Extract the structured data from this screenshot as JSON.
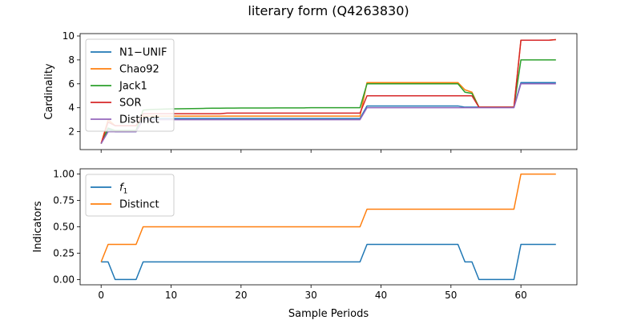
{
  "chart_data": {
    "type": "line",
    "title": "literary form (Q4263830)",
    "xlabel": "Sample Periods",
    "xlim": [
      -3,
      68
    ],
    "xticks": [
      0,
      10,
      20,
      30,
      40,
      50,
      60
    ],
    "x": [
      0,
      1,
      2,
      3,
      4,
      5,
      6,
      7,
      8,
      9,
      10,
      11,
      12,
      13,
      14,
      15,
      16,
      17,
      18,
      19,
      20,
      21,
      22,
      23,
      24,
      25,
      26,
      27,
      28,
      29,
      30,
      31,
      32,
      33,
      34,
      35,
      36,
      37,
      38,
      39,
      40,
      41,
      42,
      43,
      44,
      45,
      46,
      47,
      48,
      49,
      50,
      51,
      52,
      53,
      54,
      55,
      56,
      57,
      58,
      59,
      60,
      61,
      62,
      63,
      64,
      65
    ],
    "grid": false,
    "panels": [
      {
        "ylabel": "Cardinality",
        "ylim": [
          0.5,
          10.2
        ],
        "yticks": [
          2,
          4,
          6,
          8,
          10
        ],
        "legend_position": "upper-left",
        "series": [
          {
            "name": "N1−UNIF",
            "color": "#1f77b4",
            "values": [
              1,
              2.2,
              2,
              2,
              2,
              2,
              3.1,
              3.1,
              3.1,
              3.1,
              3.1,
              3.1,
              3.1,
              3.1,
              3.1,
              3.1,
              3.1,
              3.1,
              3.1,
              3.1,
              3.1,
              3.1,
              3.1,
              3.1,
              3.1,
              3.1,
              3.1,
              3.1,
              3.1,
              3.1,
              3.1,
              3.1,
              3.1,
              3.1,
              3.1,
              3.1,
              3.1,
              3.1,
              4.15,
              4.15,
              4.15,
              4.15,
              4.15,
              4.15,
              4.15,
              4.15,
              4.15,
              4.15,
              4.15,
              4.15,
              4.15,
              4.15,
              4.05,
              4.05,
              4.05,
              4.05,
              4.05,
              4.05,
              4.05,
              4.05,
              6.1,
              6.1,
              6.1,
              6.1,
              6.1,
              6.1
            ]
          },
          {
            "name": "Chao92",
            "color": "#ff7f0e",
            "values": [
              1,
              3,
              2.5,
              2.5,
              2.5,
              2.5,
              3.3,
              3.3,
              3.3,
              3.3,
              3.3,
              3.3,
              3.3,
              3.3,
              3.3,
              3.3,
              3.3,
              3.3,
              3.3,
              3.3,
              3.3,
              3.3,
              3.3,
              3.3,
              3.3,
              3.3,
              3.3,
              3.3,
              3.3,
              3.3,
              3.3,
              3.3,
              3.3,
              3.3,
              3.3,
              3.3,
              3.3,
              3.3,
              6.1,
              6.1,
              6.1,
              6.1,
              6.1,
              6.1,
              6.1,
              6.1,
              6.1,
              6.1,
              6.1,
              6.1,
              6.1,
              6.1,
              5.5,
              5.3,
              4.05,
              4.05,
              4.05,
              4.05,
              4.05,
              4.05,
              9.65,
              9.65,
              9.65,
              9.65,
              9.65,
              9.7
            ]
          },
          {
            "name": "Jack1",
            "color": "#2ca02c",
            "values": [
              1,
              2.3,
              2.1,
              2.1,
              2.1,
              2.1,
              3.8,
              3.85,
              3.87,
              3.89,
              3.9,
              3.91,
              3.92,
              3.93,
              3.94,
              3.95,
              3.96,
              3.96,
              3.97,
              3.97,
              3.98,
              3.98,
              3.98,
              3.98,
              3.98,
              3.99,
              3.99,
              3.99,
              3.99,
              3.99,
              4,
              4,
              4,
              4,
              4,
              4,
              4,
              4,
              6,
              6,
              6,
              6,
              6,
              6,
              6,
              6,
              6,
              6,
              6,
              6,
              6,
              6,
              5.3,
              5.2,
              4.05,
              4.05,
              4.05,
              4.05,
              4.05,
              4.05,
              8,
              8,
              8,
              8,
              8,
              8
            ]
          },
          {
            "name": "SOR",
            "color": "#d62728",
            "values": [
              1,
              2.8,
              2.5,
              2.5,
              2.5,
              2.5,
              3.5,
              3.5,
              3.5,
              3.5,
              3.5,
              3.5,
              3.5,
              3.5,
              3.5,
              3.5,
              3.5,
              3.5,
              3.55,
              3.55,
              3.55,
              3.55,
              3.55,
              3.55,
              3.55,
              3.55,
              3.55,
              3.55,
              3.55,
              3.55,
              3.55,
              3.55,
              3.55,
              3.55,
              3.55,
              3.55,
              3.55,
              3.55,
              5,
              5,
              5,
              5,
              5,
              5,
              5,
              5,
              5,
              5,
              5,
              5,
              5,
              5,
              5,
              5,
              4.05,
              4.05,
              4.05,
              4.05,
              4.05,
              4.05,
              9.65,
              9.65,
              9.65,
              9.65,
              9.65,
              9.7
            ]
          },
          {
            "name": "Distinct",
            "color": "#9467bd",
            "values": [
              1,
              2,
              2,
              2,
              2,
              2,
              3,
              3,
              3,
              3,
              3,
              3,
              3,
              3,
              3,
              3,
              3,
              3,
              3,
              3,
              3,
              3,
              3,
              3,
              3,
              3,
              3,
              3,
              3,
              3,
              3,
              3,
              3,
              3,
              3,
              3,
              3,
              3,
              4,
              4,
              4,
              4,
              4,
              4,
              4,
              4,
              4,
              4,
              4,
              4,
              4,
              4,
              4,
              4,
              4,
              4,
              4,
              4,
              4,
              4,
              6,
              6,
              6,
              6,
              6,
              6
            ]
          }
        ]
      },
      {
        "ylabel": "Indicators",
        "ylim": [
          -0.05,
          1.05
        ],
        "yticks": [
          0.0,
          0.25,
          0.5,
          0.75,
          1.0
        ],
        "ytick_labels": [
          "0.00",
          "0.25",
          "0.50",
          "0.75",
          "1.00"
        ],
        "legend_position": "upper-left",
        "series": [
          {
            "name": "f",
            "name_subscript": "1",
            "color": "#1f77b4",
            "values": [
              0.167,
              0.167,
              0,
              0,
              0,
              0,
              0.167,
              0.167,
              0.167,
              0.167,
              0.167,
              0.167,
              0.167,
              0.167,
              0.167,
              0.167,
              0.167,
              0.167,
              0.167,
              0.167,
              0.167,
              0.167,
              0.167,
              0.167,
              0.167,
              0.167,
              0.167,
              0.167,
              0.167,
              0.167,
              0.167,
              0.167,
              0.167,
              0.167,
              0.167,
              0.167,
              0.167,
              0.167,
              0.333,
              0.333,
              0.333,
              0.333,
              0.333,
              0.333,
              0.333,
              0.333,
              0.333,
              0.333,
              0.333,
              0.333,
              0.333,
              0.333,
              0.167,
              0.167,
              0,
              0,
              0,
              0,
              0,
              0,
              0.333,
              0.333,
              0.333,
              0.333,
              0.333,
              0.333
            ]
          },
          {
            "name": "Distinct",
            "color": "#ff7f0e",
            "values": [
              0.167,
              0.333,
              0.333,
              0.333,
              0.333,
              0.333,
              0.5,
              0.5,
              0.5,
              0.5,
              0.5,
              0.5,
              0.5,
              0.5,
              0.5,
              0.5,
              0.5,
              0.5,
              0.5,
              0.5,
              0.5,
              0.5,
              0.5,
              0.5,
              0.5,
              0.5,
              0.5,
              0.5,
              0.5,
              0.5,
              0.5,
              0.5,
              0.5,
              0.5,
              0.5,
              0.5,
              0.5,
              0.5,
              0.667,
              0.667,
              0.667,
              0.667,
              0.667,
              0.667,
              0.667,
              0.667,
              0.667,
              0.667,
              0.667,
              0.667,
              0.667,
              0.667,
              0.667,
              0.667,
              0.667,
              0.667,
              0.667,
              0.667,
              0.667,
              0.667,
              1,
              1,
              1,
              1,
              1,
              1
            ]
          }
        ]
      }
    ]
  }
}
